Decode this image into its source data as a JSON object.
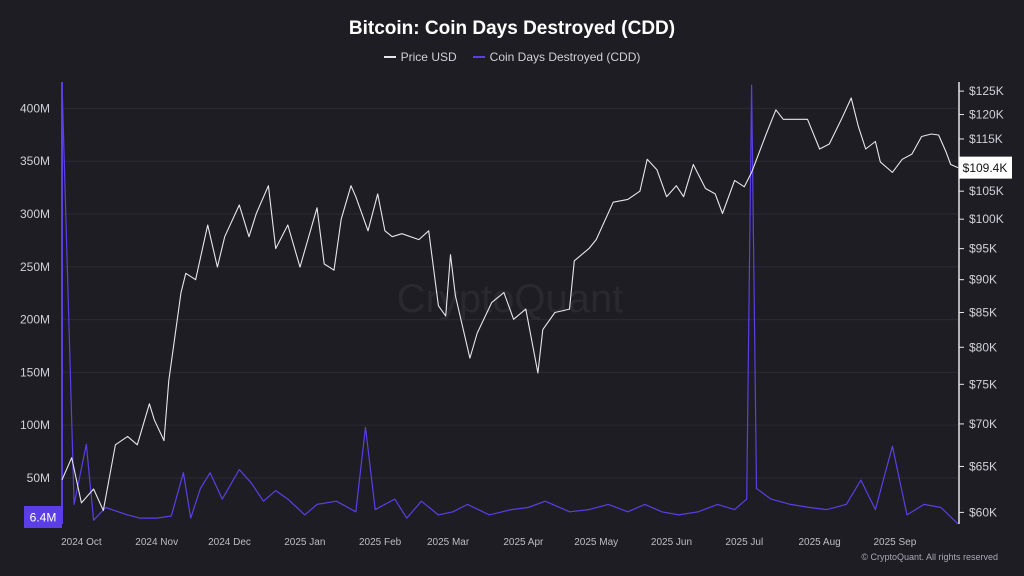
{
  "chart_data": {
    "type": "line",
    "title": "Bitcoin: Coin Days Destroyed (CDD)",
    "legend": [
      {
        "name": "Price USD",
        "color": "#e6e6ea"
      },
      {
        "name": "Coin Days Destroyed (CDD)",
        "color": "#5b3ee6"
      }
    ],
    "x_ticks": [
      "2024 Oct",
      "2024 Nov",
      "2024 Dec",
      "2025 Jan",
      "2025 Feb",
      "2025 Mar",
      "2025 Apr",
      "2025 May",
      "2025 Jun",
      "2025 Jul",
      "2025 Aug",
      "2025 Sep"
    ],
    "x_range": [
      "2024-09-23",
      "2025-09-27"
    ],
    "left_axis": {
      "ticks": [
        "50M",
        "100M",
        "150M",
        "200M",
        "250M",
        "300M",
        "350M",
        "400M"
      ],
      "values": [
        50,
        100,
        150,
        200,
        250,
        300,
        350,
        400
      ],
      "unit": "M",
      "range": [
        6.4,
        425
      ]
    },
    "right_axis": {
      "ticks": [
        "$60K",
        "$65K",
        "$70K",
        "$75K",
        "$80K",
        "$85K",
        "$90K",
        "$95K",
        "$100K",
        "$105K",
        "$110K",
        "$115K",
        "$120K",
        "$125K"
      ],
      "values": [
        60,
        65,
        70,
        75,
        80,
        85,
        90,
        95,
        100,
        105,
        110,
        115,
        120,
        125
      ],
      "unit": "K",
      "log_scale": true,
      "range": [
        58.8,
        127
      ]
    },
    "current_price_label": "$109.4K",
    "current_cdd_label": "6.4M",
    "watermark": "CryptoQuant",
    "series": [
      {
        "name": "Price USD",
        "color": "#e6e6ea",
        "points": [
          [
            "2024-09-23",
            63.5
          ],
          [
            "2024-09-27",
            66
          ],
          [
            "2024-10-01",
            61
          ],
          [
            "2024-10-06",
            62.5
          ],
          [
            "2024-10-10",
            60.2
          ],
          [
            "2024-10-15",
            67.5
          ],
          [
            "2024-10-20",
            68.5
          ],
          [
            "2024-10-24",
            67.5
          ],
          [
            "2024-10-29",
            72.5
          ],
          [
            "2024-10-31",
            70.5
          ],
          [
            "2024-11-04",
            68
          ],
          [
            "2024-11-06",
            75.5
          ],
          [
            "2024-11-11",
            88
          ],
          [
            "2024-11-13",
            91
          ],
          [
            "2024-11-17",
            90
          ],
          [
            "2024-11-22",
            99
          ],
          [
            "2024-11-26",
            92
          ],
          [
            "2024-11-29",
            97
          ],
          [
            "2024-12-05",
            102.5
          ],
          [
            "2024-12-09",
            97
          ],
          [
            "2024-12-12",
            101
          ],
          [
            "2024-12-17",
            106
          ],
          [
            "2024-12-20",
            95
          ],
          [
            "2024-12-25",
            99
          ],
          [
            "2024-12-30",
            92
          ],
          [
            "2025-01-06",
            102
          ],
          [
            "2025-01-09",
            92.5
          ],
          [
            "2025-01-13",
            91.5
          ],
          [
            "2025-01-16",
            100
          ],
          [
            "2025-01-20",
            106
          ],
          [
            "2025-01-22",
            104
          ],
          [
            "2025-01-27",
            98
          ],
          [
            "2025-01-31",
            104.5
          ],
          [
            "2025-02-03",
            98
          ],
          [
            "2025-02-06",
            97
          ],
          [
            "2025-02-10",
            97.5
          ],
          [
            "2025-02-17",
            96.5
          ],
          [
            "2025-02-21",
            98
          ],
          [
            "2025-02-25",
            86
          ],
          [
            "2025-02-28",
            84.5
          ],
          [
            "2025-03-02",
            94
          ],
          [
            "2025-03-04",
            87.5
          ],
          [
            "2025-03-10",
            78.5
          ],
          [
            "2025-03-13",
            82
          ],
          [
            "2025-03-19",
            86.5
          ],
          [
            "2025-03-24",
            88
          ],
          [
            "2025-03-28",
            84
          ],
          [
            "2025-04-02",
            85.5
          ],
          [
            "2025-04-07",
            76.5
          ],
          [
            "2025-04-09",
            82.5
          ],
          [
            "2025-04-14",
            85
          ],
          [
            "2025-04-20",
            85.5
          ],
          [
            "2025-04-22",
            93
          ],
          [
            "2025-04-28",
            95
          ],
          [
            "2025-05-01",
            96.5
          ],
          [
            "2025-05-08",
            103
          ],
          [
            "2025-05-14",
            103.5
          ],
          [
            "2025-05-19",
            105
          ],
          [
            "2025-05-22",
            111
          ],
          [
            "2025-05-26",
            109
          ],
          [
            "2025-05-30",
            104
          ],
          [
            "2025-06-03",
            106
          ],
          [
            "2025-06-06",
            104
          ],
          [
            "2025-06-10",
            110
          ],
          [
            "2025-06-15",
            105.5
          ],
          [
            "2025-06-19",
            104.5
          ],
          [
            "2025-06-22",
            101
          ],
          [
            "2025-06-27",
            107
          ],
          [
            "2025-07-01",
            105.8
          ],
          [
            "2025-07-04",
            108.5
          ],
          [
            "2025-07-10",
            116
          ],
          [
            "2025-07-14",
            121
          ],
          [
            "2025-07-17",
            119
          ],
          [
            "2025-07-22",
            119
          ],
          [
            "2025-07-27",
            119
          ],
          [
            "2025-08-01",
            113
          ],
          [
            "2025-08-05",
            114
          ],
          [
            "2025-08-10",
            119
          ],
          [
            "2025-08-14",
            123.5
          ],
          [
            "2025-08-17",
            117.5
          ],
          [
            "2025-08-20",
            113
          ],
          [
            "2025-08-24",
            114.5
          ],
          [
            "2025-08-26",
            110.5
          ],
          [
            "2025-08-31",
            108.5
          ],
          [
            "2025-09-04",
            111
          ],
          [
            "2025-09-08",
            112
          ],
          [
            "2025-09-12",
            115.5
          ],
          [
            "2025-09-16",
            116
          ],
          [
            "2025-09-19",
            115.8
          ],
          [
            "2025-09-22",
            112.5
          ],
          [
            "2025-09-24",
            110
          ],
          [
            "2025-09-27",
            109.4
          ]
        ]
      },
      {
        "name": "Coin Days Destroyed (CDD)",
        "color": "#5b3ee6",
        "points": [
          [
            "2024-09-23",
            425
          ],
          [
            "2024-09-28",
            25
          ],
          [
            "2024-10-03",
            82
          ],
          [
            "2024-10-06",
            10
          ],
          [
            "2024-10-11",
            22
          ],
          [
            "2024-10-20",
            15
          ],
          [
            "2024-10-25",
            12
          ],
          [
            "2024-11-01",
            12
          ],
          [
            "2024-11-07",
            14
          ],
          [
            "2024-11-12",
            55
          ],
          [
            "2024-11-15",
            12
          ],
          [
            "2024-11-19",
            40
          ],
          [
            "2024-11-23",
            55
          ],
          [
            "2024-11-28",
            30
          ],
          [
            "2024-12-05",
            58
          ],
          [
            "2024-12-10",
            45
          ],
          [
            "2024-12-15",
            28
          ],
          [
            "2024-12-20",
            38
          ],
          [
            "2024-12-25",
            30
          ],
          [
            "2025-01-01",
            15
          ],
          [
            "2025-01-06",
            25
          ],
          [
            "2025-01-14",
            28
          ],
          [
            "2025-01-22",
            18
          ],
          [
            "2025-01-26",
            98
          ],
          [
            "2025-01-30",
            20
          ],
          [
            "2025-02-07",
            30
          ],
          [
            "2025-02-12",
            12
          ],
          [
            "2025-02-18",
            28
          ],
          [
            "2025-02-25",
            15
          ],
          [
            "2025-03-03",
            18
          ],
          [
            "2025-03-09",
            25
          ],
          [
            "2025-03-18",
            15
          ],
          [
            "2025-03-27",
            20
          ],
          [
            "2025-04-03",
            22
          ],
          [
            "2025-04-10",
            28
          ],
          [
            "2025-04-20",
            18
          ],
          [
            "2025-04-28",
            20
          ],
          [
            "2025-05-06",
            25
          ],
          [
            "2025-05-14",
            18
          ],
          [
            "2025-05-21",
            25
          ],
          [
            "2025-05-28",
            18
          ],
          [
            "2025-06-04",
            15
          ],
          [
            "2025-06-12",
            18
          ],
          [
            "2025-06-20",
            25
          ],
          [
            "2025-06-27",
            20
          ],
          [
            "2025-07-02",
            30
          ],
          [
            "2025-07-04",
            422
          ],
          [
            "2025-07-06",
            40
          ],
          [
            "2025-07-12",
            30
          ],
          [
            "2025-07-20",
            25
          ],
          [
            "2025-07-28",
            22
          ],
          [
            "2025-08-04",
            20
          ],
          [
            "2025-08-12",
            25
          ],
          [
            "2025-08-18",
            48
          ],
          [
            "2025-08-24",
            20
          ],
          [
            "2025-08-31",
            80
          ],
          [
            "2025-09-06",
            15
          ],
          [
            "2025-09-13",
            25
          ],
          [
            "2025-09-20",
            22
          ],
          [
            "2025-09-27",
            6.4
          ]
        ]
      }
    ],
    "credit": "© CryptoQuant. All rights reserved"
  }
}
